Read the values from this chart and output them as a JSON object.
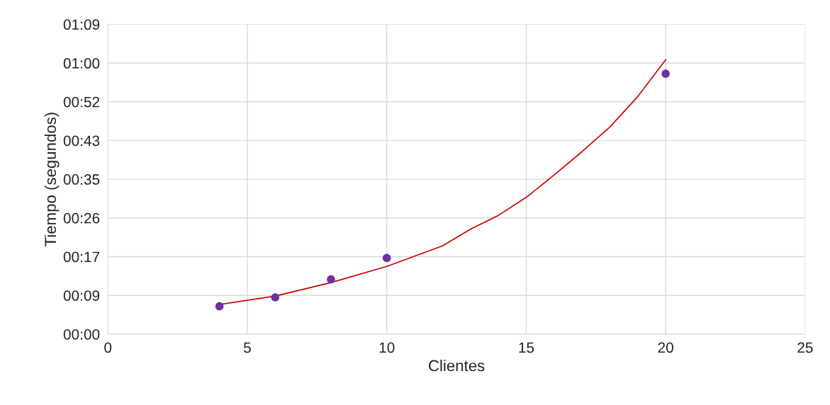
{
  "chart_data": {
    "type": "scatter",
    "xlabel": "Clientes",
    "ylabel": "Tiempo (segundos)",
    "xlim": [
      0,
      25
    ],
    "xticks": [
      0,
      5,
      10,
      15,
      20,
      25
    ],
    "ylim": [
      0,
      69.12
    ],
    "yticks": [
      {
        "value": 0,
        "label": "00:00"
      },
      {
        "value": 8.64,
        "label": "00:09"
      },
      {
        "value": 17.28,
        "label": "00:17"
      },
      {
        "value": 25.92,
        "label": "00:26"
      },
      {
        "value": 34.56,
        "label": "00:35"
      },
      {
        "value": 43.2,
        "label": "00:43"
      },
      {
        "value": 51.84,
        "label": "00:52"
      },
      {
        "value": 60.48,
        "label": "01:00"
      },
      {
        "value": 69.12,
        "label": "01:09"
      }
    ],
    "grid": true,
    "series": [
      {
        "type": "line",
        "color": "#cc0000",
        "marker": "none",
        "x": [
          4,
          6,
          8,
          10,
          11,
          12,
          13,
          14,
          15,
          16,
          17,
          18,
          19,
          20
        ],
        "values": [
          6.6,
          8.5,
          11.5,
          15.1,
          17.4,
          19.7,
          23.4,
          26.5,
          30.5,
          35.5,
          40.7,
          46.2,
          53.0,
          61.2
        ]
      },
      {
        "color": "#7030a0",
        "marker": "circle",
        "x": [
          4,
          6,
          8,
          10,
          20
        ],
        "values": [
          6.2,
          8.2,
          12.2,
          17.0,
          58.1
        ]
      }
    ]
  }
}
